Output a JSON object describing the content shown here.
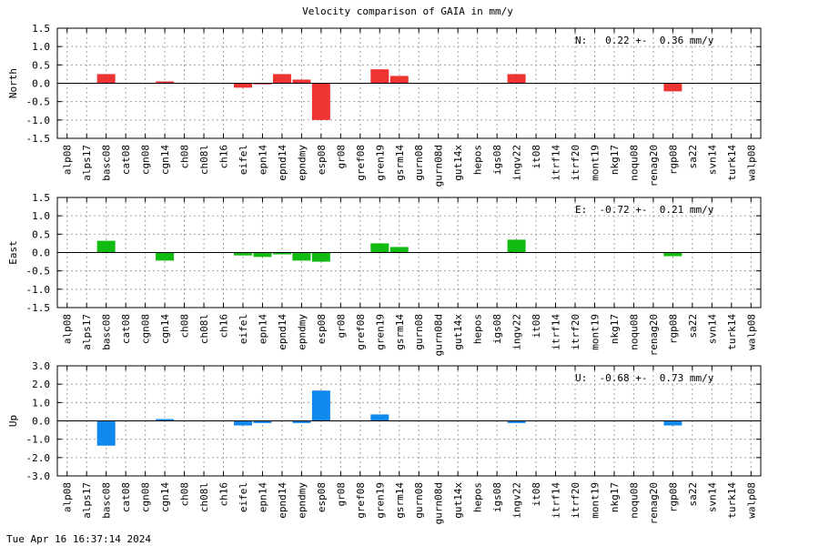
{
  "title": "Velocity comparison of GAIA in mm/y",
  "timestamp": "Tue Apr 16 16:37:14 2024",
  "chart_data": {
    "type": "bar",
    "title": "Velocity comparison of GAIA in mm/y",
    "categories": [
      "alp08",
      "alps17",
      "basc08",
      "cat08",
      "cgn08",
      "cgn14",
      "ch08",
      "ch08l",
      "ch16",
      "eifel",
      "epn14",
      "epnd14",
      "epndmy",
      "esp08",
      "gr08",
      "gref08",
      "gren19",
      "gsrm14",
      "gurn08",
      "gurn08d",
      "gut14x",
      "hepos",
      "igs08",
      "ingv22",
      "it08",
      "itrf14",
      "itrf20",
      "mont19",
      "nkg17",
      "noqu08",
      "renag20",
      "rgp08",
      "sa22",
      "svn14",
      "turk14",
      "walp08"
    ],
    "panels": [
      {
        "ylabel": "North",
        "ylim": [
          -1.5,
          1.5
        ],
        "yticks": [
          "1.5",
          "1.0",
          "0.5",
          "0.0",
          "-0.5",
          "-1.0",
          "-1.5"
        ],
        "color": "#ee3333",
        "annotation": "N:   0.22 +-  0.36 mm/y",
        "values": [
          null,
          null,
          0.25,
          null,
          null,
          0.05,
          null,
          null,
          null,
          -0.12,
          -0.03,
          0.25,
          0.1,
          -1.0,
          null,
          null,
          0.38,
          0.2,
          null,
          null,
          null,
          null,
          null,
          0.25,
          null,
          null,
          null,
          null,
          null,
          null,
          null,
          -0.22,
          null,
          null,
          null,
          null
        ]
      },
      {
        "ylabel": "East",
        "ylim": [
          -1.5,
          1.5
        ],
        "yticks": [
          "1.5",
          "1.0",
          "0.5",
          "0.0",
          "-0.5",
          "-1.0",
          "-1.5"
        ],
        "color": "#11bb11",
        "annotation": "E:  -0.72 +-  0.21 mm/y",
        "values": [
          null,
          null,
          0.32,
          null,
          null,
          -0.22,
          null,
          null,
          null,
          -0.08,
          -0.12,
          -0.05,
          -0.22,
          -0.25,
          null,
          null,
          0.25,
          0.15,
          null,
          null,
          null,
          null,
          null,
          0.35,
          null,
          null,
          null,
          null,
          null,
          null,
          null,
          -0.1,
          null,
          null,
          null,
          null
        ]
      },
      {
        "ylabel": "Up",
        "ylim": [
          -3.0,
          3.0
        ],
        "yticks": [
          "3.0",
          "2.0",
          "1.0",
          "0.0",
          "-1.0",
          "-2.0",
          "-3.0"
        ],
        "color": "#1188ee",
        "annotation": "U:  -0.68 +-  0.73 mm/y",
        "values": [
          null,
          null,
          -1.35,
          null,
          null,
          0.1,
          null,
          null,
          null,
          -0.25,
          -0.12,
          null,
          -0.12,
          1.65,
          null,
          null,
          0.35,
          null,
          null,
          null,
          null,
          null,
          null,
          -0.12,
          null,
          null,
          null,
          null,
          null,
          null,
          null,
          -0.25,
          null,
          null,
          null,
          null
        ]
      }
    ]
  }
}
